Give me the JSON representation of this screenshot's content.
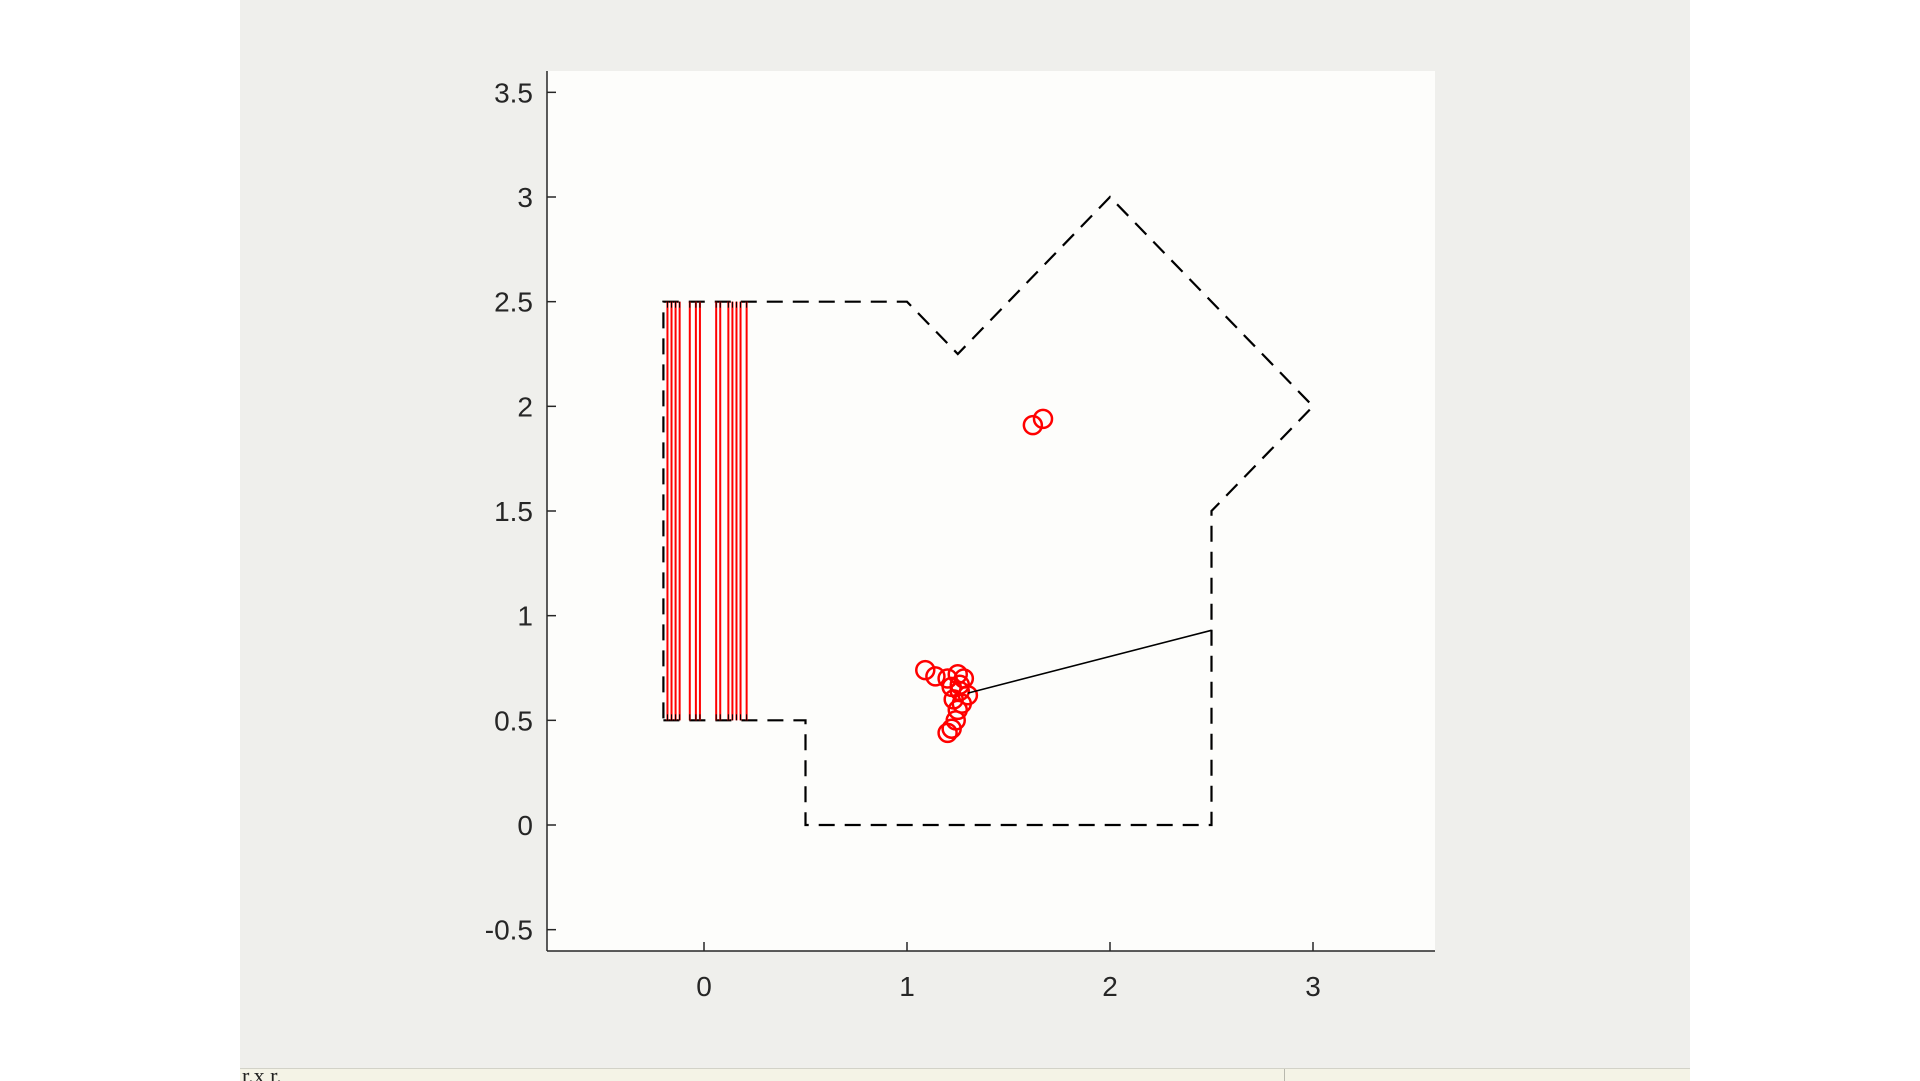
{
  "chart_data": {
    "type": "scatter",
    "title": "",
    "xlabel": "",
    "ylabel": "",
    "xlim": [
      -0.75,
      3.6
    ],
    "ylim": [
      -0.6,
      3.6
    ],
    "xticks": [
      0,
      1,
      2,
      3
    ],
    "xtick_labels": [
      "0",
      "1",
      "2",
      "3"
    ],
    "yticks": [
      -0.5,
      0,
      0.5,
      1,
      1.5,
      2,
      2.5,
      3,
      3.5
    ],
    "ytick_labels": [
      "-0.5",
      "0",
      "0.5",
      "1",
      "1.5",
      "2",
      "2.5",
      "3",
      "3.5"
    ],
    "grid": false,
    "legend": "none",
    "series": [
      {
        "type": "dashed-line",
        "color": "#000000",
        "points": [
          [
            -0.2,
            0.5
          ],
          [
            0.5,
            0.5
          ],
          [
            0.5,
            0.0
          ],
          [
            2.5,
            0.0
          ],
          [
            2.5,
            1.5
          ],
          [
            3.0,
            2.0
          ],
          [
            2.0,
            3.0
          ],
          [
            1.25,
            2.25
          ],
          [
            1.0,
            2.5
          ],
          [
            -0.2,
            2.5
          ],
          [
            -0.2,
            0.5
          ]
        ]
      },
      {
        "type": "vertical-lines",
        "color": "#ff0000",
        "y_range": [
          0.5,
          2.5
        ],
        "x": [
          -0.18,
          -0.16,
          -0.14,
          -0.12,
          -0.07,
          -0.04,
          -0.02,
          0.06,
          0.08,
          0.12,
          0.14,
          0.16,
          0.18,
          0.21
        ]
      },
      {
        "type": "scatter",
        "marker": "circle",
        "color": "#ff0000",
        "points": [
          [
            1.62,
            1.91
          ],
          [
            1.67,
            1.94
          ],
          [
            1.09,
            0.74
          ],
          [
            1.14,
            0.71
          ],
          [
            1.2,
            0.7
          ],
          [
            1.25,
            0.72
          ],
          [
            1.28,
            0.7
          ],
          [
            1.22,
            0.66
          ],
          [
            1.26,
            0.64
          ],
          [
            1.3,
            0.62
          ],
          [
            1.23,
            0.6
          ],
          [
            1.27,
            0.58
          ],
          [
            1.25,
            0.55
          ],
          [
            1.24,
            0.5
          ],
          [
            1.22,
            0.46
          ],
          [
            1.2,
            0.44
          ],
          [
            1.26,
            0.67
          ]
        ]
      },
      {
        "type": "line",
        "color": "#000000",
        "points": [
          [
            1.3,
            0.63
          ],
          [
            2.5,
            0.93
          ]
        ]
      }
    ]
  },
  "status_bar": {
    "text": "r.x r."
  }
}
